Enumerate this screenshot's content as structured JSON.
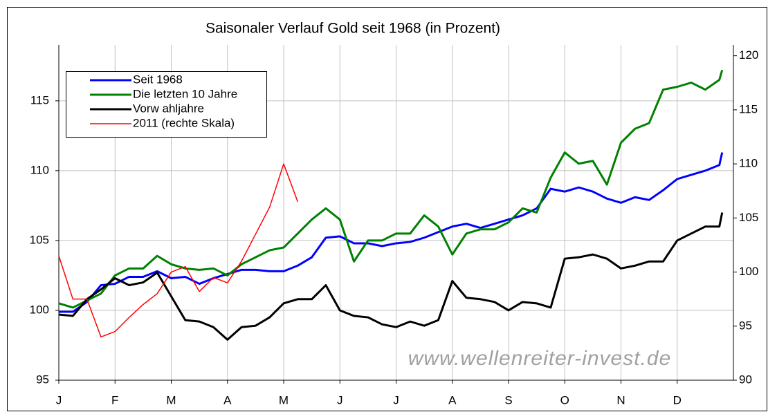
{
  "chart_data": {
    "type": "line",
    "title": "Saisonaler Verlauf Gold seit 1968 (in Prozent)",
    "watermark": "www.wellenreiter-invest.de",
    "categories": [
      "J",
      "F",
      "M",
      "A",
      "M",
      "J",
      "J",
      "A",
      "S",
      "O",
      "N",
      "D"
    ],
    "x": [
      0,
      0.25,
      0.5,
      0.75,
      1,
      1.25,
      1.5,
      1.75,
      2,
      2.25,
      2.5,
      2.75,
      3,
      3.25,
      3.5,
      3.75,
      4,
      4.25,
      4.5,
      4.75,
      5,
      5.25,
      5.5,
      5.75,
      6,
      6.25,
      6.5,
      6.75,
      7,
      7.25,
      7.5,
      7.75,
      8,
      8.25,
      8.5,
      8.75,
      9,
      9.25,
      9.5,
      9.75,
      10,
      10.25,
      10.5,
      10.75,
      11,
      11.25,
      11.5,
      11.75,
      11.8
    ],
    "xlim": [
      0,
      12
    ],
    "ylim": [
      95,
      119
    ],
    "yticks": [
      95,
      100,
      105,
      110,
      115
    ],
    "y2lim": [
      90,
      121
    ],
    "y2ticks": [
      90,
      95,
      100,
      105,
      110,
      115,
      120
    ],
    "grid": true,
    "legend": "upper left",
    "series": [
      {
        "name": "Seit 1968",
        "color": "#0000ff",
        "width": 3,
        "values": [
          99.9,
          99.9,
          100.6,
          101.8,
          101.9,
          102.4,
          102.4,
          102.8,
          102.3,
          102.4,
          101.9,
          102.3,
          102.6,
          102.9,
          102.9,
          102.8,
          102.8,
          103.2,
          103.8,
          105.2,
          105.3,
          104.8,
          104.8,
          104.6,
          104.8,
          104.9,
          105.2,
          105.6,
          106.0,
          106.2,
          105.9,
          106.2,
          106.5,
          106.8,
          107.3,
          108.7,
          108.5,
          108.8,
          108.5,
          108.0,
          107.7,
          108.1,
          107.9,
          108.6,
          109.4,
          109.7,
          110.0,
          110.4,
          111.3
        ]
      },
      {
        "name": "Die letzten 10 Jahre",
        "color": "#008000",
        "width": 3,
        "values": [
          100.5,
          100.2,
          100.7,
          101.2,
          102.5,
          103.0,
          103.0,
          103.9,
          103.3,
          103.0,
          102.9,
          103.0,
          102.5,
          103.3,
          103.8,
          104.3,
          104.5,
          105.5,
          106.5,
          107.3,
          106.5,
          103.5,
          105.0,
          105.0,
          105.5,
          105.5,
          106.8,
          106.0,
          104.0,
          105.5,
          105.8,
          105.8,
          106.3,
          107.3,
          107.0,
          109.5,
          111.3,
          110.5,
          110.7,
          109.0,
          112.0,
          113.0,
          113.4,
          115.8,
          116.0,
          116.3,
          115.8,
          116.5,
          117.2
        ]
      },
      {
        "name": "Vorw ahljahre",
        "color": "#000000",
        "width": 3,
        "values": [
          99.7,
          99.6,
          100.8,
          101.5,
          102.3,
          101.8,
          102.0,
          102.7,
          101.0,
          99.3,
          99.2,
          98.8,
          97.9,
          98.8,
          98.9,
          99.5,
          100.5,
          100.8,
          100.8,
          101.8,
          100.0,
          99.6,
          99.5,
          99.0,
          98.8,
          99.2,
          98.9,
          99.3,
          102.1,
          100.9,
          100.8,
          100.6,
          100.0,
          100.6,
          100.5,
          100.2,
          103.7,
          103.8,
          104.0,
          103.7,
          103.0,
          103.2,
          103.5,
          103.5,
          105.0,
          105.5,
          106.0,
          106.0,
          107.0
        ]
      },
      {
        "name": "2011 (rechte Skala)",
        "color": "#ff0000",
        "width": 1.5,
        "axis": "y2",
        "values": [
          101.5,
          97.5,
          97.5,
          94.0,
          94.5,
          95.8,
          97.0,
          98.0,
          100.0,
          100.5,
          98.2,
          99.5,
          99.0,
          101.0,
          103.5,
          106.0,
          110.0,
          106.5,
          null,
          null,
          null,
          null,
          null,
          null,
          null,
          null,
          null,
          null,
          null,
          null,
          null,
          null,
          null,
          null,
          null,
          null,
          null,
          null,
          null,
          null,
          null,
          null,
          null,
          null,
          null,
          null,
          null,
          null,
          null
        ]
      }
    ]
  }
}
